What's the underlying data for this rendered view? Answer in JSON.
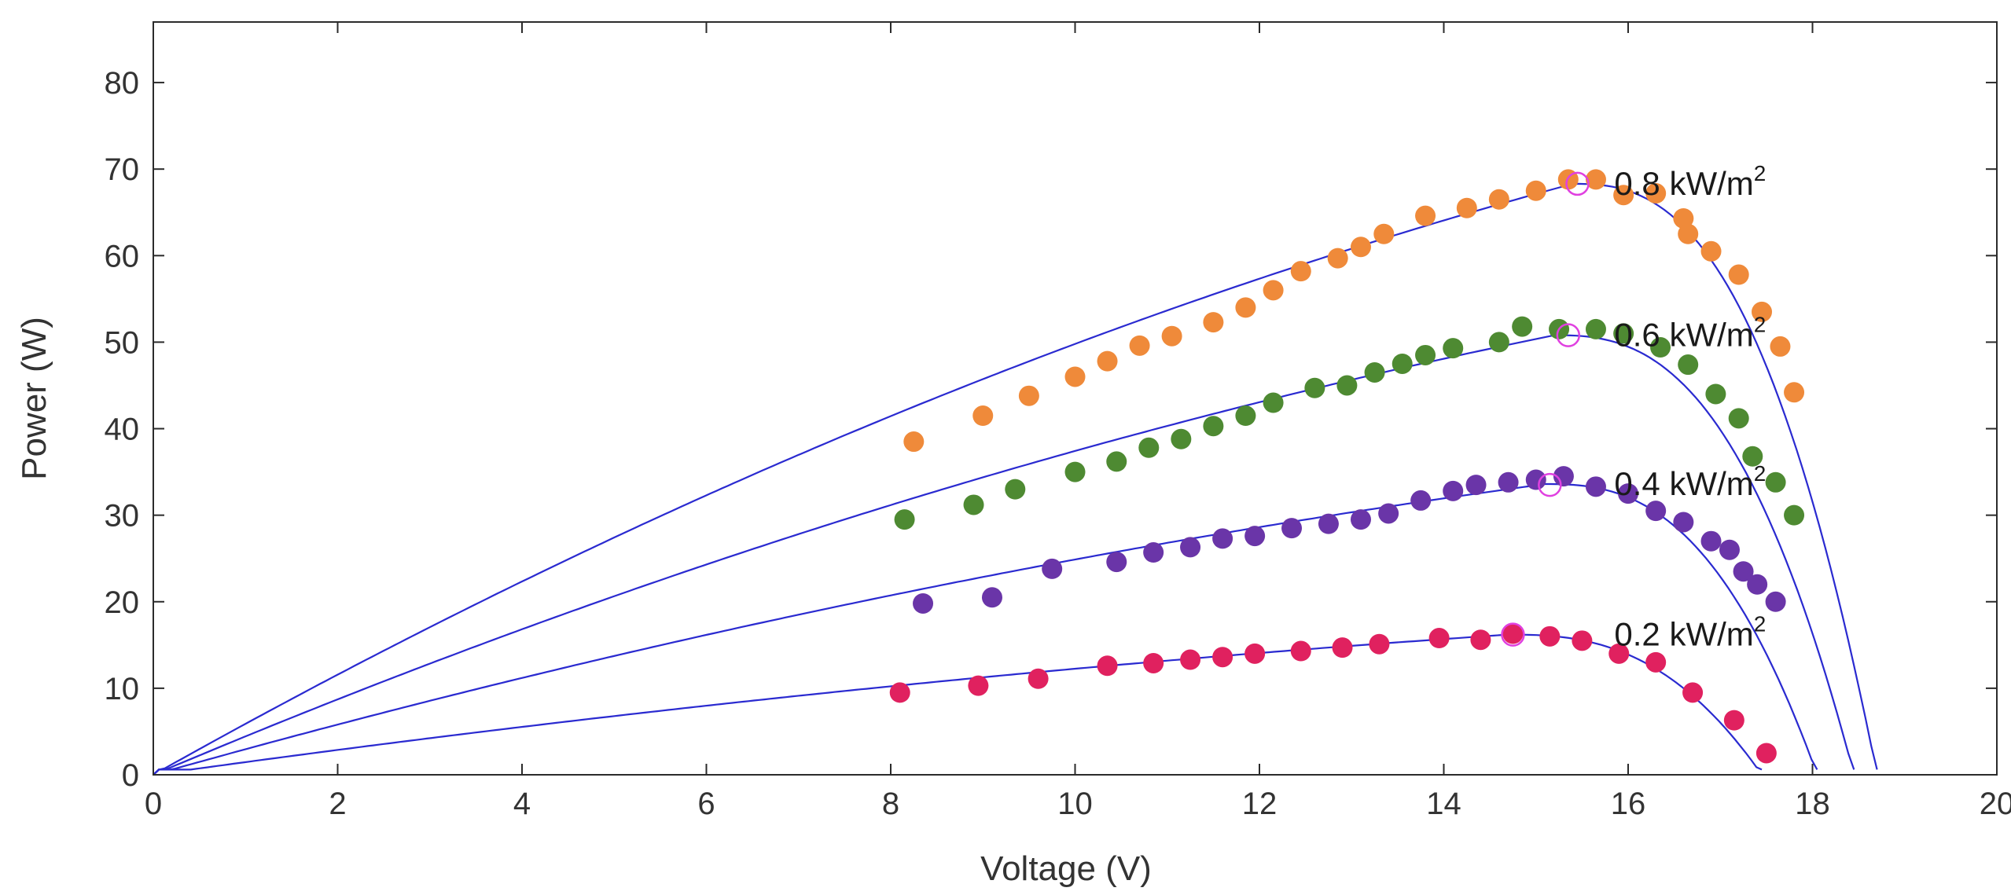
{
  "chart_data": {
    "type": "scatter",
    "title": "",
    "xlabel": "Voltage (V)",
    "ylabel": "Power (W)",
    "xlim": [
      0,
      20
    ],
    "ylim": [
      0,
      87
    ],
    "xticks": [
      0,
      2,
      4,
      6,
      8,
      10,
      12,
      14,
      16,
      18,
      20
    ],
    "yticks": [
      0,
      10,
      20,
      30,
      40,
      50,
      60,
      70,
      80
    ],
    "grid": false,
    "fit_line_color": "#2a2ad0",
    "mpp_marker_color": "#e040e0",
    "series": [
      {
        "name": "0.8 kW/m",
        "unit_sup": "2",
        "color": "#ef8a3a",
        "points": [
          [
            8.25,
            38.5
          ],
          [
            9.0,
            41.5
          ],
          [
            9.5,
            43.8
          ],
          [
            10.0,
            46.0
          ],
          [
            10.35,
            47.8
          ],
          [
            10.7,
            49.6
          ],
          [
            11.05,
            50.7
          ],
          [
            11.5,
            52.3
          ],
          [
            11.85,
            54.0
          ],
          [
            12.15,
            56.0
          ],
          [
            12.45,
            58.2
          ],
          [
            12.85,
            59.7
          ],
          [
            13.1,
            61.0
          ],
          [
            13.35,
            62.5
          ],
          [
            13.8,
            64.6
          ],
          [
            14.25,
            65.5
          ],
          [
            14.6,
            66.5
          ],
          [
            15.0,
            67.5
          ],
          [
            15.35,
            68.8
          ],
          [
            15.65,
            68.8
          ],
          [
            15.95,
            67.0
          ],
          [
            16.3,
            67.2
          ],
          [
            16.6,
            64.3
          ],
          [
            16.65,
            62.5
          ],
          [
            16.9,
            60.5
          ],
          [
            17.2,
            57.8
          ],
          [
            17.45,
            53.5
          ],
          [
            17.65,
            49.5
          ],
          [
            17.8,
            44.2
          ]
        ],
        "fit": {
          "pmax": 68.3,
          "vmp": 15.4,
          "voc": 18.7
        },
        "mpp": [
          15.45,
          68.3
        ]
      },
      {
        "name": "0.6 kW/m",
        "unit_sup": "2",
        "color": "#4e8a32",
        "points": [
          [
            8.15,
            29.5
          ],
          [
            8.9,
            31.2
          ],
          [
            9.35,
            33.0
          ],
          [
            10.0,
            35.0
          ],
          [
            10.45,
            36.2
          ],
          [
            10.8,
            37.8
          ],
          [
            11.15,
            38.8
          ],
          [
            11.5,
            40.3
          ],
          [
            11.85,
            41.5
          ],
          [
            12.15,
            43.0
          ],
          [
            12.6,
            44.7
          ],
          [
            12.95,
            45.0
          ],
          [
            13.25,
            46.5
          ],
          [
            13.55,
            47.5
          ],
          [
            13.8,
            48.5
          ],
          [
            14.1,
            49.3
          ],
          [
            14.6,
            50.0
          ],
          [
            14.85,
            51.8
          ],
          [
            15.25,
            51.5
          ],
          [
            15.65,
            51.5
          ],
          [
            15.95,
            51.0
          ],
          [
            16.35,
            49.4
          ],
          [
            16.65,
            47.4
          ],
          [
            16.95,
            44.0
          ],
          [
            17.2,
            41.2
          ],
          [
            17.35,
            36.8
          ],
          [
            17.6,
            33.8
          ],
          [
            17.8,
            30.0
          ]
        ],
        "fit": {
          "pmax": 50.8,
          "vmp": 15.2,
          "voc": 18.45
        },
        "mpp": [
          15.35,
          50.8
        ]
      },
      {
        "name": "0.4 kW/m",
        "unit_sup": "2",
        "color": "#6a35a8",
        "points": [
          [
            8.35,
            19.8
          ],
          [
            9.1,
            20.5
          ],
          [
            9.75,
            23.8
          ],
          [
            10.45,
            24.6
          ],
          [
            10.85,
            25.7
          ],
          [
            11.25,
            26.3
          ],
          [
            11.6,
            27.3
          ],
          [
            11.95,
            27.6
          ],
          [
            12.35,
            28.5
          ],
          [
            12.75,
            29.0
          ],
          [
            13.1,
            29.5
          ],
          [
            13.4,
            30.2
          ],
          [
            13.75,
            31.7
          ],
          [
            14.1,
            32.8
          ],
          [
            14.35,
            33.5
          ],
          [
            14.7,
            33.8
          ],
          [
            15.0,
            34.1
          ],
          [
            15.3,
            34.5
          ],
          [
            15.65,
            33.3
          ],
          [
            16.0,
            32.5
          ],
          [
            16.3,
            30.5
          ],
          [
            16.6,
            29.2
          ],
          [
            16.9,
            27.0
          ],
          [
            17.1,
            26.0
          ],
          [
            17.25,
            23.5
          ],
          [
            17.4,
            22.0
          ],
          [
            17.6,
            20.0
          ]
        ],
        "fit": {
          "pmax": 33.6,
          "vmp": 15.1,
          "voc": 18.05
        },
        "mpp": [
          15.15,
          33.5
        ]
      },
      {
        "name": "0.2 kW/m",
        "unit_sup": "2",
        "color": "#e0215f",
        "points": [
          [
            8.1,
            9.5
          ],
          [
            8.95,
            10.3
          ],
          [
            9.6,
            11.1
          ],
          [
            10.35,
            12.6
          ],
          [
            10.85,
            12.9
          ],
          [
            11.25,
            13.3
          ],
          [
            11.6,
            13.6
          ],
          [
            11.95,
            14.0
          ],
          [
            12.45,
            14.3
          ],
          [
            12.9,
            14.7
          ],
          [
            13.3,
            15.1
          ],
          [
            13.95,
            15.8
          ],
          [
            14.4,
            15.6
          ],
          [
            14.75,
            16.3
          ],
          [
            15.15,
            16.0
          ],
          [
            15.5,
            15.5
          ],
          [
            15.9,
            14.0
          ],
          [
            16.3,
            13.0
          ],
          [
            16.7,
            9.5
          ],
          [
            17.15,
            6.3
          ],
          [
            17.5,
            2.5
          ]
        ],
        "fit": {
          "pmax": 16.2,
          "vmp": 14.7,
          "voc": 17.45
        },
        "mpp": [
          14.75,
          16.2
        ]
      }
    ]
  }
}
